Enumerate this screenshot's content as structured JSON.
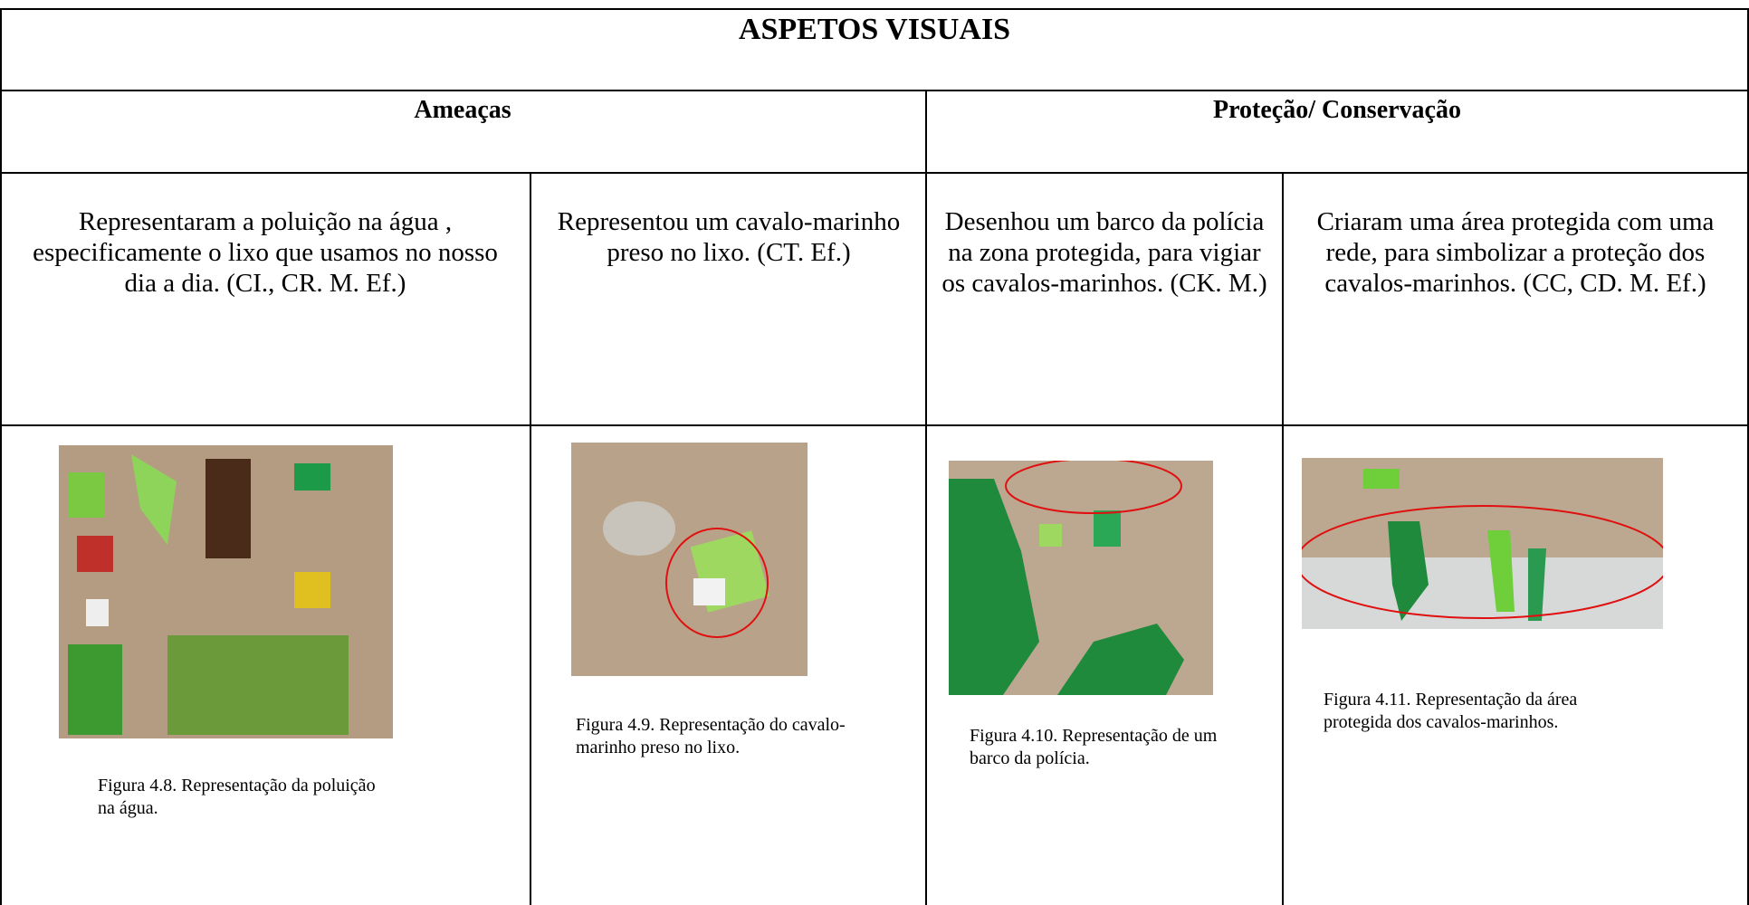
{
  "title": "ASPETOS VISUAIS",
  "sections": [
    "Ameaças",
    "Proteção/ Conservação"
  ],
  "descriptions": [
    "Representaram a poluição na água , especificamente o lixo que usamos no nosso dia a dia. (CI., CR. M. Ef.)",
    "Representou um cavalo-marinho preso no lixo. (CT. Ef.)",
    "Desenhou um barco da polícia na zona protegida, para vigiar os cavalos-marinhos. (CK. M.)",
    "Criaram uma área protegida com uma rede, para simbolizar a proteção dos cavalos-marinhos. (CC, CD. M. Ef.)"
  ],
  "captions": [
    "Figura 4.8. Representação da poluição na água.",
    "Figura 4.9. Representação do cavalo-marinho preso no lixo.",
    "Figura 4.10. Representação de um barco da polícia.",
    "Figura 4.11. Representação da área protegida dos cavalos-marinhos."
  ]
}
